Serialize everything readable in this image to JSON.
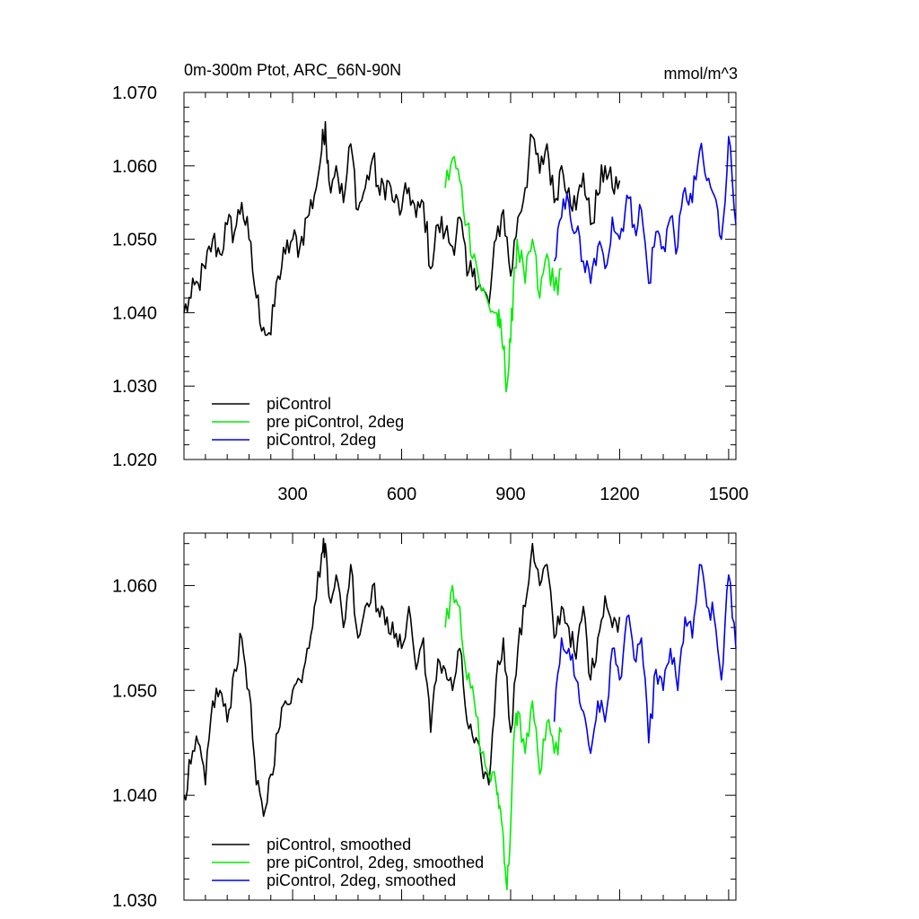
{
  "chart_data": [
    {
      "type": "line",
      "title": "0m-300m Ptot, ARC_66N-90N",
      "units": "mmol/m^3",
      "xlim": [
        1,
        1520
      ],
      "ylim": [
        1.02,
        1.07
      ],
      "xticks": [
        300,
        600,
        900,
        1200,
        1500
      ],
      "xtick_labels": [
        "300",
        "600",
        "900",
        "1200",
        "1500"
      ],
      "yticks": [
        1.02,
        1.03,
        1.04,
        1.05,
        1.06,
        1.07
      ],
      "ytick_labels": [
        "1.020",
        "1.030",
        "1.040",
        "1.050",
        "1.060",
        "1.070"
      ],
      "legend": "bottom-left",
      "series": [
        {
          "name": "piControl",
          "color": "#000000",
          "x": [
            1,
            20,
            40,
            60,
            80,
            100,
            120,
            140,
            160,
            180,
            200,
            220,
            240,
            260,
            280,
            300,
            320,
            340,
            360,
            380,
            390,
            400,
            420,
            440,
            460,
            480,
            500,
            520,
            540,
            560,
            580,
            600,
            620,
            640,
            660,
            680,
            700,
            720,
            740,
            760,
            780,
            800,
            820,
            840,
            860,
            880,
            900,
            920,
            940,
            960,
            980,
            1000,
            1020,
            1040,
            1060,
            1080,
            1100,
            1120,
            1140,
            1160,
            1180,
            1200
          ],
          "y": [
            1.04,
            1.042,
            1.044,
            1.046,
            1.05,
            1.048,
            1.052,
            1.051,
            1.055,
            1.05,
            1.042,
            1.038,
            1.037,
            1.045,
            1.048,
            1.05,
            1.049,
            1.053,
            1.056,
            1.062,
            1.066,
            1.058,
            1.06,
            1.055,
            1.063,
            1.054,
            1.057,
            1.061,
            1.056,
            1.058,
            1.055,
            1.054,
            1.057,
            1.053,
            1.055,
            1.046,
            1.052,
            1.051,
            1.049,
            1.053,
            1.045,
            1.046,
            1.043,
            1.041,
            1.05,
            1.054,
            1.045,
            1.053,
            1.057,
            1.064,
            1.059,
            1.063,
            1.055,
            1.06,
            1.057,
            1.054,
            1.059,
            1.052,
            1.056,
            1.06,
            1.057,
            1.058
          ]
        },
        {
          "name": "pre piControl, 2deg",
          "color": "#00ee00",
          "x": [
            720,
            740,
            760,
            780,
            800,
            820,
            840,
            860,
            870,
            880,
            890,
            900,
            910,
            920,
            940,
            960,
            980,
            1000,
            1020,
            1040
          ],
          "y": [
            1.057,
            1.061,
            1.058,
            1.052,
            1.048,
            1.043,
            1.041,
            1.04,
            1.038,
            1.035,
            1.03,
            1.036,
            1.046,
            1.049,
            1.044,
            1.05,
            1.042,
            1.048,
            1.043,
            1.046
          ]
        },
        {
          "name": "piControl, 2deg",
          "color": "#0000ee",
          "x": [
            1020,
            1040,
            1060,
            1080,
            1100,
            1120,
            1140,
            1160,
            1180,
            1200,
            1220,
            1240,
            1260,
            1280,
            1300,
            1320,
            1340,
            1360,
            1380,
            1400,
            1420,
            1440,
            1460,
            1480,
            1500,
            1520
          ],
          "y": [
            1.047,
            1.053,
            1.055,
            1.051,
            1.047,
            1.044,
            1.049,
            1.046,
            1.053,
            1.05,
            1.056,
            1.052,
            1.054,
            1.044,
            1.051,
            1.049,
            1.053,
            1.049,
            1.057,
            1.055,
            1.062,
            1.058,
            1.056,
            1.05,
            1.064,
            1.052
          ]
        }
      ]
    },
    {
      "type": "line",
      "title": "",
      "units": "",
      "xlim": [
        1,
        1520
      ],
      "ylim": [
        1.03,
        1.065
      ],
      "xticks": [
        300,
        600,
        900,
        1200,
        1500
      ],
      "xtick_labels": [
        "",
        "",
        "",
        "",
        ""
      ],
      "yticks": [
        1.03,
        1.04,
        1.05,
        1.06
      ],
      "ytick_labels": [
        "1.030",
        "1.040",
        "1.050",
        "1.060"
      ],
      "legend": "bottom-left",
      "series": [
        {
          "name": "piControl, smoothed",
          "color": "#000000",
          "x": [
            1,
            20,
            40,
            60,
            80,
            100,
            120,
            140,
            160,
            180,
            200,
            220,
            240,
            260,
            280,
            300,
            320,
            340,
            360,
            380,
            390,
            400,
            420,
            440,
            460,
            480,
            500,
            520,
            540,
            560,
            580,
            600,
            620,
            640,
            660,
            680,
            700,
            720,
            740,
            760,
            780,
            800,
            820,
            840,
            860,
            880,
            900,
            920,
            940,
            960,
            980,
            1000,
            1020,
            1040,
            1060,
            1080,
            1100,
            1120,
            1140,
            1160,
            1180,
            1200
          ],
          "y": [
            1.04,
            1.043,
            1.045,
            1.041,
            1.049,
            1.05,
            1.047,
            1.052,
            1.055,
            1.05,
            1.041,
            1.038,
            1.042,
            1.046,
            1.049,
            1.05,
            1.051,
            1.054,
            1.058,
            1.063,
            1.064,
            1.059,
            1.061,
            1.056,
            1.062,
            1.055,
            1.058,
            1.06,
            1.057,
            1.057,
            1.055,
            1.054,
            1.058,
            1.052,
            1.055,
            1.046,
            1.053,
            1.052,
            1.05,
            1.054,
            1.047,
            1.045,
            1.043,
            1.041,
            1.051,
            1.055,
            1.046,
            1.054,
            1.058,
            1.064,
            1.06,
            1.062,
            1.055,
            1.058,
            1.056,
            1.053,
            1.058,
            1.051,
            1.055,
            1.059,
            1.056,
            1.057
          ]
        },
        {
          "name": "pre piControl, 2deg, smoothed",
          "color": "#00ee00",
          "x": [
            720,
            740,
            760,
            780,
            800,
            820,
            840,
            860,
            870,
            880,
            890,
            900,
            910,
            920,
            940,
            960,
            980,
            1000,
            1020,
            1040
          ],
          "y": [
            1.056,
            1.06,
            1.058,
            1.051,
            1.049,
            1.044,
            1.042,
            1.041,
            1.039,
            1.036,
            1.031,
            1.037,
            1.046,
            1.048,
            1.044,
            1.049,
            1.042,
            1.047,
            1.044,
            1.046
          ]
        },
        {
          "name": "piControl, 2deg, smoothed",
          "color": "#0000ee",
          "x": [
            1020,
            1040,
            1060,
            1080,
            1100,
            1120,
            1140,
            1160,
            1180,
            1200,
            1220,
            1240,
            1260,
            1280,
            1300,
            1320,
            1340,
            1360,
            1380,
            1400,
            1420,
            1440,
            1460,
            1480,
            1500,
            1520
          ],
          "y": [
            1.047,
            1.055,
            1.054,
            1.051,
            1.048,
            1.044,
            1.049,
            1.047,
            1.054,
            1.051,
            1.057,
            1.053,
            1.055,
            1.045,
            1.052,
            1.05,
            1.054,
            1.05,
            1.057,
            1.055,
            1.062,
            1.058,
            1.057,
            1.051,
            1.061,
            1.054
          ]
        }
      ]
    }
  ]
}
